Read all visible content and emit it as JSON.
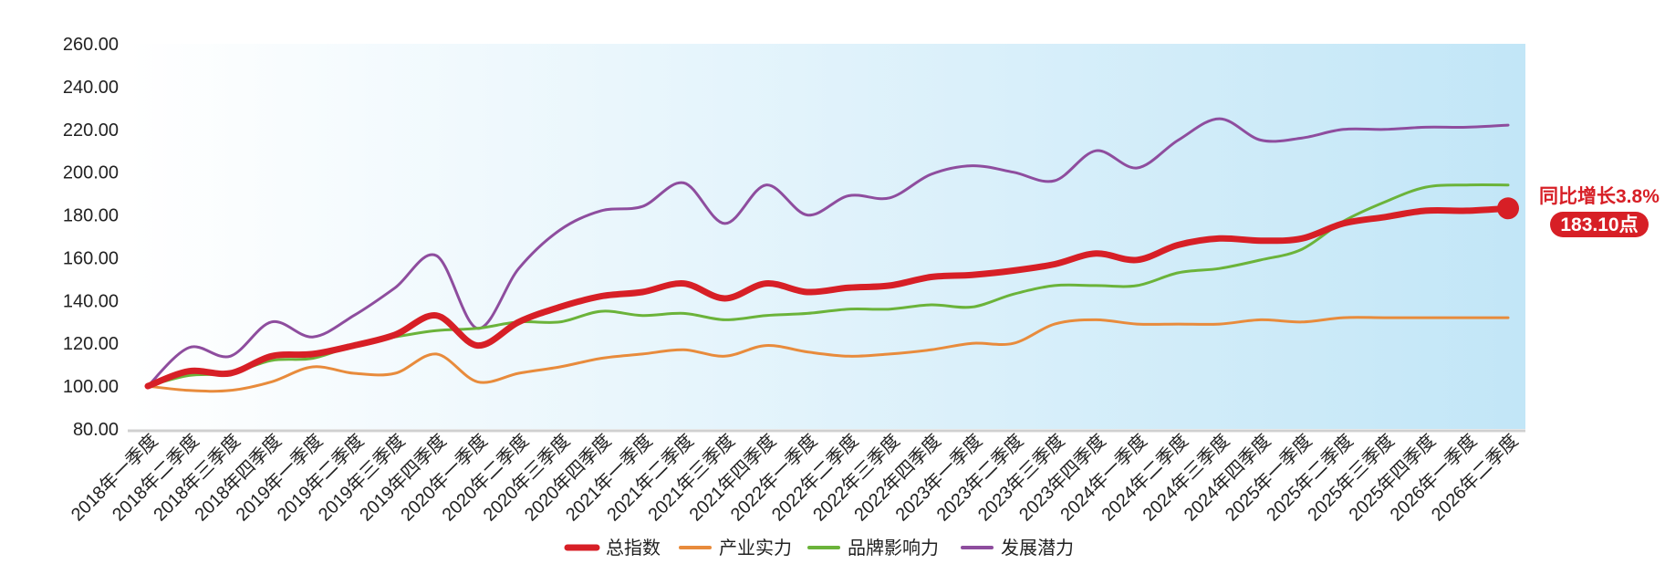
{
  "chart_data": {
    "type": "line",
    "title": "",
    "xlabel": "",
    "ylabel": "",
    "ylim": [
      80,
      260
    ],
    "yticks": [
      "80.00",
      "100.00",
      "120.00",
      "140.00",
      "160.00",
      "180.00",
      "200.00",
      "220.00",
      "240.00",
      "260.00"
    ],
    "categories": [
      "2018年一季度",
      "2018年二季度",
      "2018年三季度",
      "2018年四季度",
      "2019年一季度",
      "2019年二季度",
      "2019年三季度",
      "2019年四季度",
      "2020年一季度",
      "2020年二季度",
      "2020年三季度",
      "2020年四季度",
      "2021年一季度",
      "2021年二季度",
      "2021年三季度",
      "2021年四季度",
      "2022年一季度",
      "2022年二季度",
      "2022年三季度",
      "2022年四季度",
      "2023年一季度",
      "2023年二季度",
      "2023年三季度",
      "2023年四季度",
      "2024年一季度",
      "2024年二季度",
      "2024年三季度",
      "2024年四季度",
      "2025年一季度",
      "2025年二季度",
      "2025年三季度",
      "2025年四季度",
      "2026年一季度",
      "2026年二季度"
    ],
    "series": [
      {
        "name": "发展潜力",
        "color": "#8e4d9e",
        "values": [
          100,
          118,
          114,
          130,
          123,
          133,
          146,
          161,
          127,
          155,
          173,
          182,
          184,
          195,
          176,
          194,
          180,
          189,
          188,
          199,
          203,
          200,
          196,
          210,
          202,
          215,
          225,
          215,
          216,
          220,
          220,
          221,
          221,
          222
        ]
      },
      {
        "name": "品牌影响力",
        "color": "#6bb33a",
        "values": [
          100,
          105,
          106,
          112,
          113,
          119,
          123,
          126,
          127,
          130,
          130,
          135,
          133,
          134,
          131,
          133,
          134,
          136,
          136,
          138,
          137,
          143,
          147,
          147,
          147,
          153,
          155,
          159,
          164,
          177,
          186,
          193,
          194,
          194
        ]
      },
      {
        "name": "产业实力",
        "color": "#e88b3c",
        "values": [
          100,
          98,
          98,
          102,
          109,
          106,
          106,
          115,
          102,
          106,
          109,
          113,
          115,
          117,
          114,
          119,
          116,
          114,
          115,
          117,
          120,
          120,
          129,
          131,
          129,
          129,
          129,
          131,
          130,
          132,
          132,
          132,
          132,
          132
        ]
      },
      {
        "name": "总指数",
        "color": "#d71f26",
        "values": [
          100,
          107,
          106,
          114,
          115,
          119,
          124,
          133,
          119,
          130,
          137,
          142,
          144,
          148,
          141,
          148,
          144,
          146,
          147,
          151,
          152,
          154,
          157,
          162,
          159,
          166,
          169,
          168,
          169,
          176,
          179,
          182,
          182,
          183.1
        ]
      }
    ],
    "legend_position": "bottom",
    "legend": [
      "总指数",
      "产业实力",
      "品牌影响力",
      "发展潜力"
    ],
    "annotation": {
      "growth": "同比增长3.8%",
      "value": "183.10点"
    },
    "background_gradient": [
      "#ffffff",
      "#c2e6f7"
    ],
    "grid": false
  }
}
